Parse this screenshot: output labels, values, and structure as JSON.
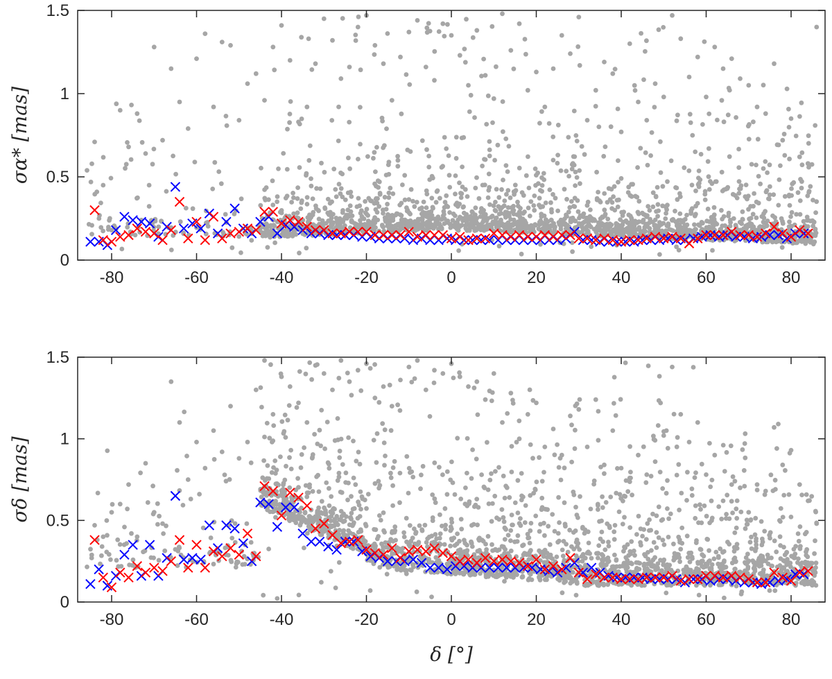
{
  "chart_data": [
    {
      "type": "scatter",
      "panel": "top",
      "title": "",
      "xlabel": "",
      "ylabel": "σα* [mas]",
      "xlim": [
        -88,
        88
      ],
      "ylim": [
        0,
        1.5
      ],
      "xticks": [
        -80,
        -60,
        -40,
        -20,
        0,
        20,
        40,
        60,
        80
      ],
      "xtick_labels": [
        "-80",
        "-60",
        "-40",
        "-20",
        "0",
        "20",
        "40",
        "60",
        "80"
      ],
      "yticks": [
        0,
        0.5,
        1,
        1.5
      ],
      "ytick_labels": [
        "0",
        "0.5",
        "1",
        "1.5"
      ],
      "grid": false,
      "legend": "none",
      "series": [
        {
          "marker": "dot",
          "color": "#a6a6a6",
          "note_count": 2600,
          "x": [
            -84,
            -82,
            -80,
            -78,
            -76,
            -74,
            -72,
            -70,
            -68,
            -66,
            -64,
            -62,
            -60,
            -58,
            -56,
            -54,
            -52,
            -50,
            -48,
            -46,
            -44,
            -42,
            -40,
            -38,
            -36,
            -34,
            -32,
            -30,
            -28,
            -26,
            -24,
            -22,
            -20,
            -18,
            -16,
            -14,
            -12,
            -10,
            -8,
            -6,
            -4,
            -2,
            0,
            2,
            4,
            6,
            8,
            10,
            12,
            14,
            16,
            18,
            20,
            22,
            24,
            26,
            28,
            30,
            32,
            34,
            36,
            38,
            40,
            42,
            44,
            46,
            48,
            50,
            52,
            54,
            56,
            58,
            60,
            62,
            64,
            66,
            68,
            70,
            72,
            74,
            76,
            78,
            80,
            82,
            84,
            86
          ],
          "y": [
            0.71,
            0.45,
            0.18,
            0.9,
            0.68,
            0.88,
            0.64,
            1.28,
            0.72,
            1.15,
            0.95,
            0.79,
            1.21,
            1.36,
            0.92,
            1.31,
            1.29,
            0.84,
            1.06,
            1.12,
            0.96,
            1.28,
            1.41,
            1.2,
            0.83,
            0.92,
            1.18,
            1.45,
            1.32,
            1.09,
            1.16,
            1.4,
            1.47,
            1.29,
            1.18,
            0.96,
            1.22,
            1.37,
            1.44,
            1.16,
            1.08,
            1.42,
            1.35,
            1.23,
            1.05,
            1.38,
            1.11,
            0.97,
            1.48,
            1.26,
            1.42,
            1.02,
            1.13,
            0.92,
            1.15,
            1.35,
            1.24,
            1.46,
            0.84,
            1.02,
            1.19,
            1.12,
            0.77,
            1.3,
            0.95,
            0.84,
            1.06,
            0.98,
            1.47,
            1.33,
            1.1,
            1.22,
            0.98,
            1.28,
            1.15,
            1.21,
            1.09,
            1.05,
            0.92,
            0.88,
            1.18,
            0.72,
            0.85,
            0.62,
            0.58,
            1.4
          ]
        },
        {
          "marker": "x",
          "color": "#0000ff",
          "x": [
            -85,
            -83,
            -81,
            -79,
            -77,
            -75,
            -73,
            -71,
            -69,
            -67,
            -65,
            -63,
            -61,
            -59,
            -57,
            -55,
            -53,
            -51,
            -49,
            -47,
            -45,
            -43,
            -41,
            -39,
            -37,
            -35,
            -33,
            -31,
            -29,
            -27,
            -25,
            -23,
            -21,
            -19,
            -17,
            -15,
            -13,
            -11,
            -9,
            -7,
            -5,
            -3,
            -1,
            1,
            3,
            5,
            7,
            9,
            11,
            13,
            15,
            17,
            19,
            21,
            23,
            25,
            27,
            29,
            31,
            33,
            35,
            37,
            39,
            41,
            43,
            45,
            47,
            49,
            51,
            53,
            55,
            57,
            59,
            61,
            63,
            65,
            67,
            69,
            71,
            73,
            75,
            77,
            79,
            81,
            83
          ],
          "y": [
            0.11,
            0.11,
            0.09,
            0.18,
            0.26,
            0.24,
            0.23,
            0.22,
            0.14,
            0.2,
            0.44,
            0.19,
            0.22,
            0.19,
            0.28,
            0.16,
            0.23,
            0.31,
            0.19,
            0.16,
            0.23,
            0.26,
            0.16,
            0.21,
            0.2,
            0.18,
            0.16,
            0.16,
            0.15,
            0.15,
            0.15,
            0.15,
            0.14,
            0.14,
            0.13,
            0.13,
            0.13,
            0.13,
            0.12,
            0.13,
            0.12,
            0.12,
            0.13,
            0.12,
            0.12,
            0.12,
            0.12,
            0.12,
            0.12,
            0.12,
            0.12,
            0.12,
            0.12,
            0.12,
            0.12,
            0.12,
            0.13,
            0.17,
            0.12,
            0.12,
            0.11,
            0.11,
            0.11,
            0.11,
            0.11,
            0.12,
            0.12,
            0.12,
            0.13,
            0.12,
            0.12,
            0.13,
            0.14,
            0.15,
            0.14,
            0.15,
            0.14,
            0.14,
            0.13,
            0.14,
            0.15,
            0.15,
            0.13,
            0.16,
            0.16
          ]
        },
        {
          "marker": "x",
          "color": "#ff0000",
          "x": [
            -84,
            -82,
            -80,
            -78,
            -76,
            -74,
            -72,
            -70,
            -68,
            -66,
            -64,
            -62,
            -60,
            -58,
            -56,
            -54,
            -52,
            -50,
            -48,
            -46,
            -44,
            -42,
            -40,
            -38,
            -36,
            -34,
            -32,
            -30,
            -28,
            -26,
            -24,
            -22,
            -20,
            -18,
            -16,
            -14,
            -12,
            -10,
            -8,
            -6,
            -4,
            -2,
            0,
            2,
            4,
            6,
            8,
            10,
            12,
            14,
            16,
            18,
            20,
            22,
            24,
            26,
            28,
            30,
            32,
            34,
            36,
            38,
            40,
            42,
            44,
            46,
            48,
            50,
            52,
            54,
            56,
            58,
            60,
            62,
            64,
            66,
            68,
            70,
            72,
            74,
            76,
            78,
            80,
            82,
            84
          ],
          "y": [
            0.3,
            0.12,
            0.11,
            0.14,
            0.15,
            0.19,
            0.17,
            0.16,
            0.12,
            0.18,
            0.35,
            0.13,
            0.23,
            0.12,
            0.26,
            0.13,
            0.16,
            0.17,
            0.19,
            0.18,
            0.29,
            0.29,
            0.22,
            0.24,
            0.23,
            0.2,
            0.18,
            0.18,
            0.16,
            0.16,
            0.17,
            0.17,
            0.17,
            0.15,
            0.15,
            0.15,
            0.15,
            0.17,
            0.14,
            0.15,
            0.15,
            0.15,
            0.13,
            0.14,
            0.12,
            0.13,
            0.13,
            0.16,
            0.15,
            0.14,
            0.15,
            0.14,
            0.14,
            0.15,
            0.14,
            0.15,
            0.15,
            0.13,
            0.13,
            0.12,
            0.13,
            0.12,
            0.11,
            0.12,
            0.12,
            0.13,
            0.14,
            0.13,
            0.14,
            0.13,
            0.1,
            0.13,
            0.15,
            0.15,
            0.15,
            0.17,
            0.15,
            0.15,
            0.14,
            0.16,
            0.2,
            0.16,
            0.14,
            0.18,
            0.16
          ]
        }
      ]
    },
    {
      "type": "scatter",
      "panel": "bottom",
      "title": "",
      "xlabel": "δ [°]",
      "ylabel": "σδ [mas]",
      "xlim": [
        -88,
        88
      ],
      "ylim": [
        0,
        1.5
      ],
      "xticks": [
        -80,
        -60,
        -40,
        -20,
        0,
        20,
        40,
        60,
        80
      ],
      "xtick_labels": [
        "-80",
        "-60",
        "-40",
        "-20",
        "0",
        "20",
        "40",
        "60",
        "80"
      ],
      "yticks": [
        0,
        0.5,
        1,
        1.5
      ],
      "ytick_labels": [
        "0",
        "0.5",
        "1",
        "1.5"
      ],
      "grid": false,
      "legend": "none",
      "series": [
        {
          "marker": "dot",
          "color": "#a6a6a6",
          "x": [
            -84,
            -82,
            -80,
            -78,
            -76,
            -74,
            -72,
            -70,
            -68,
            -66,
            -64,
            -62,
            -60,
            -58,
            -56,
            -54,
            -52,
            -50,
            -48,
            -46,
            -44,
            -42,
            -40,
            -38,
            -36,
            -34,
            -32,
            -30,
            -28,
            -26,
            -24,
            -22,
            -20,
            -18,
            -16,
            -14,
            -12,
            -10,
            -8,
            -6,
            -4,
            -2,
            0,
            2,
            4,
            6,
            8,
            10,
            12,
            14,
            16,
            18,
            20,
            22,
            24,
            26,
            28,
            30,
            32,
            34,
            36,
            38,
            40,
            42,
            44,
            46,
            48,
            50,
            52,
            54,
            56,
            58,
            60,
            62,
            64,
            66,
            68,
            70,
            72,
            74,
            76,
            78,
            80,
            82,
            84,
            86
          ],
          "y": [
            0.47,
            0.4,
            0.55,
            0.6,
            0.72,
            0.4,
            0.85,
            0.55,
            0.48,
            1.35,
            1.1,
            0.75,
            0.98,
            0.82,
            1.05,
            0.92,
            1.2,
            0.88,
            0.98,
            1.3,
            1.48,
            1.15,
            1.38,
            1.32,
            1.22,
            1.1,
            1.45,
            1.4,
            1.3,
            1.48,
            1.35,
            1.42,
            1.46,
            1.25,
            1.32,
            1.2,
            1.36,
            1.44,
            1.48,
            1.3,
            1.42,
            1.4,
            1.46,
            1.38,
            1.32,
            1.35,
            1.24,
            1.4,
            1.1,
            1.28,
            1.0,
            1.15,
            1.22,
            0.95,
            1.06,
            0.9,
            1.14,
            1.18,
            0.95,
            1.24,
            0.84,
            1.05,
            0.82,
            0.76,
            0.9,
            0.78,
            0.86,
            1.02,
            1.44,
            1.15,
            0.98,
            1.1,
            0.78,
            0.9,
            0.62,
            0.72,
            0.7,
            0.55,
            0.72,
            0.68,
            1.07,
            0.84,
            0.93,
            0.72,
            0.62,
            0.48
          ]
        },
        {
          "marker": "x",
          "color": "#0000ff",
          "x": [
            -85,
            -83,
            -81,
            -79,
            -77,
            -75,
            -73,
            -71,
            -69,
            -67,
            -65,
            -63,
            -61,
            -59,
            -57,
            -55,
            -53,
            -51,
            -49,
            -47,
            -45,
            -43,
            -41,
            -39,
            -37,
            -35,
            -33,
            -31,
            -29,
            -27,
            -25,
            -23,
            -21,
            -19,
            -17,
            -15,
            -13,
            -11,
            -9,
            -7,
            -5,
            -3,
            -1,
            1,
            3,
            5,
            7,
            9,
            11,
            13,
            15,
            17,
            19,
            21,
            23,
            25,
            27,
            29,
            31,
            33,
            35,
            37,
            39,
            41,
            43,
            45,
            47,
            49,
            51,
            53,
            55,
            57,
            59,
            61,
            63,
            65,
            67,
            69,
            71,
            73,
            75,
            77,
            79,
            81,
            83
          ],
          "y": [
            0.11,
            0.2,
            0.1,
            0.16,
            0.29,
            0.35,
            0.16,
            0.35,
            0.16,
            0.27,
            0.65,
            0.26,
            0.27,
            0.26,
            0.47,
            0.33,
            0.47,
            0.45,
            0.36,
            0.25,
            0.61,
            0.6,
            0.46,
            0.58,
            0.58,
            0.42,
            0.37,
            0.37,
            0.34,
            0.32,
            0.37,
            0.37,
            0.31,
            0.28,
            0.27,
            0.25,
            0.25,
            0.25,
            0.26,
            0.24,
            0.21,
            0.21,
            0.2,
            0.22,
            0.22,
            0.21,
            0.21,
            0.21,
            0.21,
            0.21,
            0.21,
            0.21,
            0.21,
            0.2,
            0.19,
            0.18,
            0.21,
            0.24,
            0.18,
            0.21,
            0.18,
            0.16,
            0.15,
            0.15,
            0.15,
            0.15,
            0.14,
            0.14,
            0.14,
            0.14,
            0.12,
            0.14,
            0.14,
            0.13,
            0.14,
            0.14,
            0.13,
            0.12,
            0.12,
            0.11,
            0.12,
            0.13,
            0.14,
            0.17,
            0.17
          ]
        },
        {
          "marker": "x",
          "color": "#ff0000",
          "x": [
            -84,
            -82,
            -80,
            -78,
            -76,
            -74,
            -72,
            -70,
            -68,
            -66,
            -64,
            -62,
            -60,
            -58,
            -56,
            -54,
            -52,
            -50,
            -48,
            -46,
            -44,
            -42,
            -40,
            -38,
            -36,
            -34,
            -32,
            -30,
            -28,
            -26,
            -24,
            -22,
            -20,
            -18,
            -16,
            -14,
            -12,
            -10,
            -8,
            -6,
            -4,
            -2,
            0,
            2,
            4,
            6,
            8,
            10,
            12,
            14,
            16,
            18,
            20,
            22,
            24,
            26,
            28,
            30,
            32,
            34,
            36,
            38,
            40,
            42,
            44,
            46,
            48,
            50,
            52,
            54,
            56,
            58,
            60,
            62,
            64,
            66,
            68,
            70,
            72,
            74,
            76,
            78,
            80,
            82,
            84
          ],
          "y": [
            0.38,
            0.15,
            0.09,
            0.18,
            0.15,
            0.22,
            0.18,
            0.21,
            0.19,
            0.25,
            0.38,
            0.21,
            0.35,
            0.21,
            0.31,
            0.28,
            0.33,
            0.29,
            0.42,
            0.28,
            0.71,
            0.68,
            0.53,
            0.67,
            0.64,
            0.59,
            0.45,
            0.48,
            0.41,
            0.36,
            0.37,
            0.38,
            0.32,
            0.3,
            0.29,
            0.33,
            0.27,
            0.31,
            0.32,
            0.31,
            0.33,
            0.3,
            0.28,
            0.25,
            0.26,
            0.24,
            0.27,
            0.25,
            0.26,
            0.25,
            0.24,
            0.22,
            0.26,
            0.2,
            0.22,
            0.2,
            0.27,
            0.18,
            0.14,
            0.17,
            0.15,
            0.15,
            0.14,
            0.14,
            0.14,
            0.15,
            0.15,
            0.15,
            0.16,
            0.13,
            0.14,
            0.14,
            0.16,
            0.16,
            0.15,
            0.16,
            0.15,
            0.14,
            0.12,
            0.12,
            0.18,
            0.15,
            0.13,
            0.18,
            0.19
          ]
        }
      ]
    }
  ]
}
